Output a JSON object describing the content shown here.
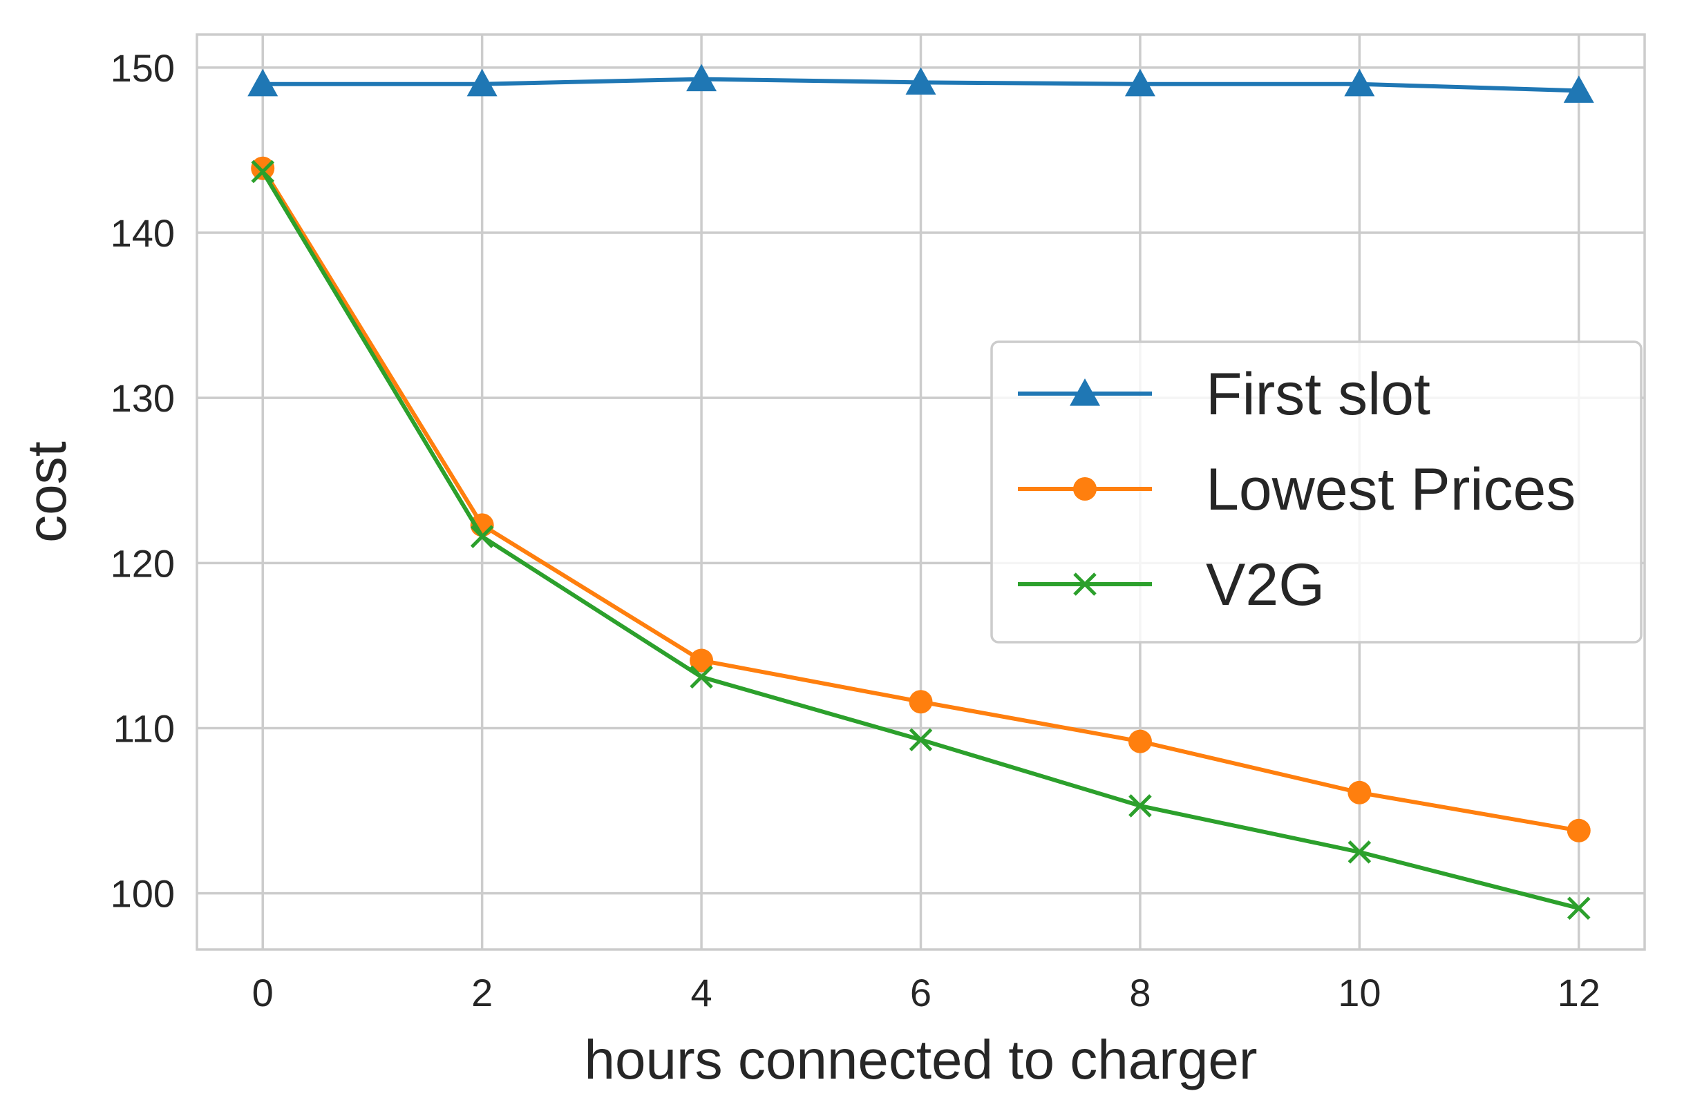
{
  "chart_data": {
    "type": "line",
    "title": "",
    "xlabel": "hours connected to charger",
    "ylabel": "cost",
    "x": [
      0,
      2,
      4,
      6,
      8,
      10,
      12
    ],
    "xticks": [
      "0",
      "2",
      "4",
      "6",
      "8",
      "10",
      "12"
    ],
    "yticks": [
      "100",
      "110",
      "120",
      "130",
      "140",
      "150"
    ],
    "xlim": [
      -0.6,
      12.6
    ],
    "ylim": [
      96.6,
      152.0
    ],
    "grid": true,
    "legend_position": "center-right",
    "series": [
      {
        "name": "First slot",
        "color": "#1f77b4",
        "marker": "triangle",
        "values": [
          149.0,
          149.0,
          149.3,
          149.1,
          149.0,
          149.0,
          148.6
        ]
      },
      {
        "name": "Lowest Prices",
        "color": "#ff7f0e",
        "marker": "circle",
        "values": [
          143.9,
          122.3,
          114.1,
          111.6,
          109.2,
          106.1,
          103.8
        ]
      },
      {
        "name": "V2G",
        "color": "#2ca02c",
        "marker": "x",
        "values": [
          143.7,
          121.6,
          113.1,
          109.3,
          105.3,
          102.5,
          99.1
        ]
      }
    ]
  }
}
